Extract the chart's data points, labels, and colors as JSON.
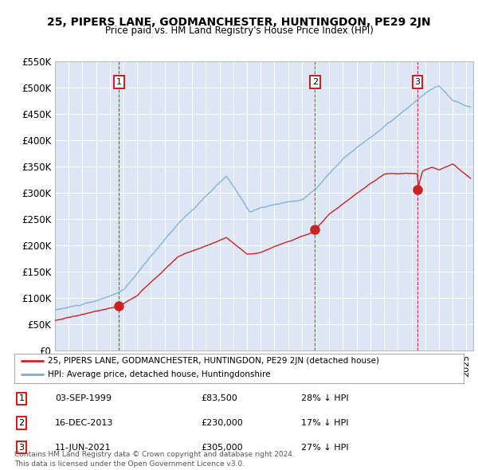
{
  "title": "25, PIPERS LANE, GODMANCHESTER, HUNTINGDON, PE29 2JN",
  "subtitle": "Price paid vs. HM Land Registry's House Price Index (HPI)",
  "background_color": "#ffffff",
  "plot_bg_color": "#dce6f5",
  "grid_color": "#ffffff",
  "hpi_color": "#7aadd4",
  "price_color": "#cc2222",
  "dashed_color": "#cc2222",
  "ylim": [
    0,
    550000
  ],
  "yticks": [
    0,
    50000,
    100000,
    150000,
    200000,
    250000,
    300000,
    350000,
    400000,
    450000,
    500000,
    550000
  ],
  "ytick_labels": [
    "£0",
    "£50K",
    "£100K",
    "£150K",
    "£200K",
    "£250K",
    "£300K",
    "£350K",
    "£400K",
    "£450K",
    "£500K",
    "£550K"
  ],
  "sale_dates": [
    1999.67,
    2013.96,
    2021.44
  ],
  "sale_prices": [
    83500,
    230000,
    305000
  ],
  "sale_labels": [
    "1",
    "2",
    "3"
  ],
  "legend_line1": "25, PIPERS LANE, GODMANCHESTER, HUNTINGDON, PE29 2JN (detached house)",
  "legend_line2": "HPI: Average price, detached house, Huntingdonshire",
  "table_data": [
    [
      "1",
      "03-SEP-1999",
      "£83,500",
      "28% ↓ HPI"
    ],
    [
      "2",
      "16-DEC-2013",
      "£230,000",
      "17% ↓ HPI"
    ],
    [
      "3",
      "11-JUN-2021",
      "£305,000",
      "27% ↓ HPI"
    ]
  ],
  "footer": "Contains HM Land Registry data © Crown copyright and database right 2024.\nThis data is licensed under the Open Government Licence v3.0.",
  "xstart": 1995.0,
  "xend": 2025.5
}
